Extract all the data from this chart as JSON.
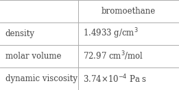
{
  "header_val": "bromoethane",
  "rows": [
    {
      "label": "density",
      "value": "1.4933 g/cm$^3$"
    },
    {
      "label": "molar volume",
      "value": "72.97 cm$^3$/mol"
    },
    {
      "label": "dynamic viscosity",
      "value": "3.74×10$^{-4}$ Pa s"
    }
  ],
  "col_split": 0.435,
  "background_color": "#ffffff",
  "line_color": "#aaaaaa",
  "text_color": "#444444",
  "font_size": 8.5,
  "font_family": "DejaVu Serif"
}
